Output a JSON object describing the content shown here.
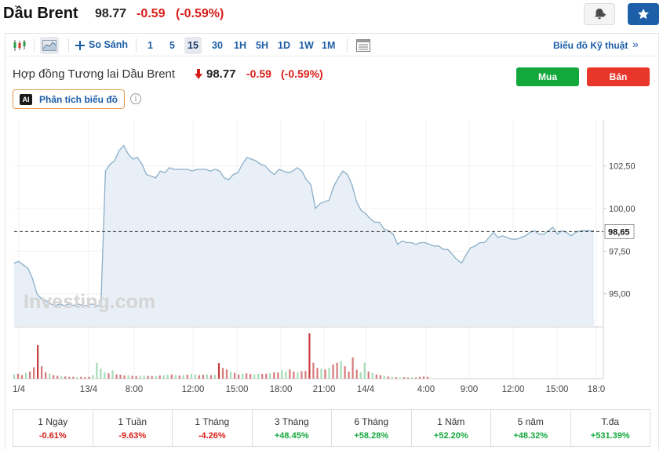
{
  "header": {
    "instrument_name": "Dầu Brent",
    "price": "98.77",
    "change": "-0.59",
    "change_pct": "(-0.59%)"
  },
  "icons": {
    "alert": "bell-plus-icon",
    "watchlist": "star-icon",
    "candles": "candlestick-icon",
    "area": "area-chart-icon",
    "compare": "plus-icon",
    "table": "table-icon",
    "down_arrow": "arrow-down-icon",
    "ai": "ai-badge-icon",
    "info": "info-icon"
  },
  "toolbar": {
    "compare_label": "So Sánh",
    "intervals": [
      "1",
      "5",
      "15",
      "30",
      "1H",
      "5H",
      "1D",
      "1W",
      "1M"
    ],
    "active_interval": "15",
    "tech_link": "Biểu đồ Kỹ thuật",
    "tech_chevron": "»"
  },
  "chart_header": {
    "title": "Hợp đồng Tương lai Dầu Brent",
    "price": "98.77",
    "change": "-0.59",
    "change_pct": "(-0.59%)",
    "buy_label": "Mua",
    "sell_label": "Bán",
    "ai_badge": "AI",
    "ai_label": "Phân tích biểu đồ",
    "info_glyph": "i"
  },
  "colors": {
    "line": "#8aafc8",
    "area_fill": "#e8eff6",
    "volume_up": "#a6dcb6",
    "volume_down": "#d67a7a",
    "volume_down_strong": "#c93a3a",
    "negative": "#d91e18",
    "positive": "#13a83c",
    "accent": "#1d5ea8"
  },
  "chart_data": {
    "type": "area",
    "watermark": "Investing.com",
    "x_tick_labels": [
      "1/4",
      "13/4",
      "8:00",
      "12:00",
      "15:00",
      "18:00",
      "21:00",
      "14/4",
      "4:00",
      "9:00",
      "12:00",
      "15:00",
      "18:0"
    ],
    "y_tick_labels": [
      "102,50",
      "100,00",
      "97,50",
      "95,00"
    ],
    "ylim": [
      93.1,
      105.2
    ],
    "last_price_label": "98,65",
    "last_price": 98.65,
    "grid": true,
    "price_series": [
      96.8,
      96.9,
      96.7,
      96.5,
      95.9,
      95.0,
      94.7,
      94.6,
      94.4,
      94.3,
      94.4,
      94.3,
      94.4,
      94.3,
      94.4,
      94.3,
      94.3,
      94.4,
      94.3,
      94.3,
      102.2,
      102.6,
      102.8,
      103.4,
      103.7,
      103.2,
      102.9,
      103.0,
      102.6,
      102.0,
      101.9,
      101.8,
      102.2,
      102.1,
      102.4,
      102.3,
      102.3,
      102.3,
      102.3,
      102.2,
      102.3,
      102.3,
      102.3,
      102.2,
      102.3,
      102.2,
      101.8,
      101.7,
      102.0,
      102.1,
      102.6,
      103.0,
      102.9,
      102.8,
      102.6,
      102.5,
      102.2,
      102.0,
      102.3,
      102.2,
      102.1,
      102.2,
      102.4,
      102.2,
      101.7,
      101.4,
      100.0,
      100.3,
      100.4,
      100.5,
      101.3,
      101.8,
      102.2,
      102.0,
      101.4,
      100.4,
      99.9,
      99.7,
      99.4,
      99.2,
      99.2,
      98.8,
      98.7,
      98.5,
      97.9,
      98.1,
      98.0,
      98.0,
      97.9,
      98.0,
      98.0,
      97.9,
      97.8,
      97.8,
      97.6,
      97.6,
      97.3,
      97.0,
      96.8,
      97.3,
      97.7,
      97.8,
      98.0,
      98.0,
      98.3,
      98.6,
      98.3,
      98.4,
      98.3,
      98.2,
      98.2,
      98.3,
      98.4,
      98.6,
      98.7,
      98.5,
      98.5,
      98.7,
      98.9,
      98.5,
      98.7,
      98.6,
      98.4,
      98.6,
      98.7,
      98.7,
      98.7,
      98.7
    ],
    "volume_series": [
      0.12,
      0.14,
      0.1,
      0.16,
      0.2,
      0.32,
      0.95,
      0.35,
      0.18,
      0.14,
      0.1,
      0.08,
      0.07,
      0.06,
      0.05,
      0.05,
      0.04,
      0.05,
      0.04,
      0.05,
      0.1,
      0.45,
      0.28,
      0.18,
      0.15,
      0.24,
      0.12,
      0.11,
      0.09,
      0.1,
      0.08,
      0.07,
      0.08,
      0.09,
      0.08,
      0.07,
      0.08,
      0.09,
      0.1,
      0.11,
      0.12,
      0.1,
      0.09,
      0.1,
      0.11,
      0.13,
      0.12,
      0.1,
      0.11,
      0.12,
      0.1,
      0.11,
      0.44,
      0.3,
      0.26,
      0.2,
      0.16,
      0.12,
      0.14,
      0.15,
      0.13,
      0.12,
      0.14,
      0.13,
      0.14,
      0.15,
      0.18,
      0.17,
      0.24,
      0.2,
      0.26,
      0.2,
      0.18,
      0.21,
      0.22,
      1.28,
      0.45,
      0.3,
      0.28,
      0.26,
      0.3,
      0.4,
      0.45,
      0.5,
      0.35,
      0.2,
      0.6,
      0.25,
      0.18,
      0.45,
      0.2,
      0.16,
      0.12,
      0.1,
      0.08,
      0.06,
      0.05,
      0.04,
      0.03,
      0.04,
      0.03,
      0.04,
      0.03,
      0.05,
      0.06,
      0.05
    ],
    "volume_colors": [
      "u",
      "d",
      "d",
      "u",
      "d",
      "d",
      "D",
      "d",
      "d",
      "u",
      "d",
      "d",
      "u",
      "d",
      "d",
      "d",
      "u",
      "d",
      "d",
      "d",
      "u",
      "u",
      "u",
      "u",
      "d",
      "u",
      "d",
      "d",
      "d",
      "u",
      "d",
      "d",
      "u",
      "u",
      "d",
      "d",
      "u",
      "d",
      "u",
      "u",
      "d",
      "u",
      "d",
      "u",
      "d",
      "u",
      "u",
      "d",
      "d",
      "u",
      "d",
      "u",
      "D",
      "d",
      "d",
      "u",
      "d",
      "d",
      "u",
      "d",
      "d",
      "u",
      "u",
      "d",
      "d",
      "u",
      "d",
      "d",
      "u",
      "u",
      "d",
      "d",
      "u",
      "d",
      "d",
      "D",
      "d",
      "d",
      "u",
      "d",
      "u",
      "d",
      "d",
      "u",
      "d",
      "d",
      "d",
      "d",
      "u",
      "u",
      "d",
      "u",
      "d",
      "d",
      "u",
      "d",
      "u",
      "d",
      "u",
      "d",
      "d",
      "u",
      "d",
      "d",
      "d",
      "d"
    ]
  },
  "performance": [
    {
      "label": "1 Ngày",
      "value": "-0.61%",
      "positive": false
    },
    {
      "label": "1 Tuần",
      "value": "-9.63%",
      "positive": false
    },
    {
      "label": "1 Tháng",
      "value": "-4.26%",
      "positive": false
    },
    {
      "label": "3 Tháng",
      "value": "+48.45%",
      "positive": true
    },
    {
      "label": "6 Tháng",
      "value": "+58.28%",
      "positive": true
    },
    {
      "label": "1 Năm",
      "value": "+52.20%",
      "positive": true
    },
    {
      "label": "5 năm",
      "value": "+48.32%",
      "positive": true
    },
    {
      "label": "T.đa",
      "value": "+531.39%",
      "positive": true
    }
  ]
}
